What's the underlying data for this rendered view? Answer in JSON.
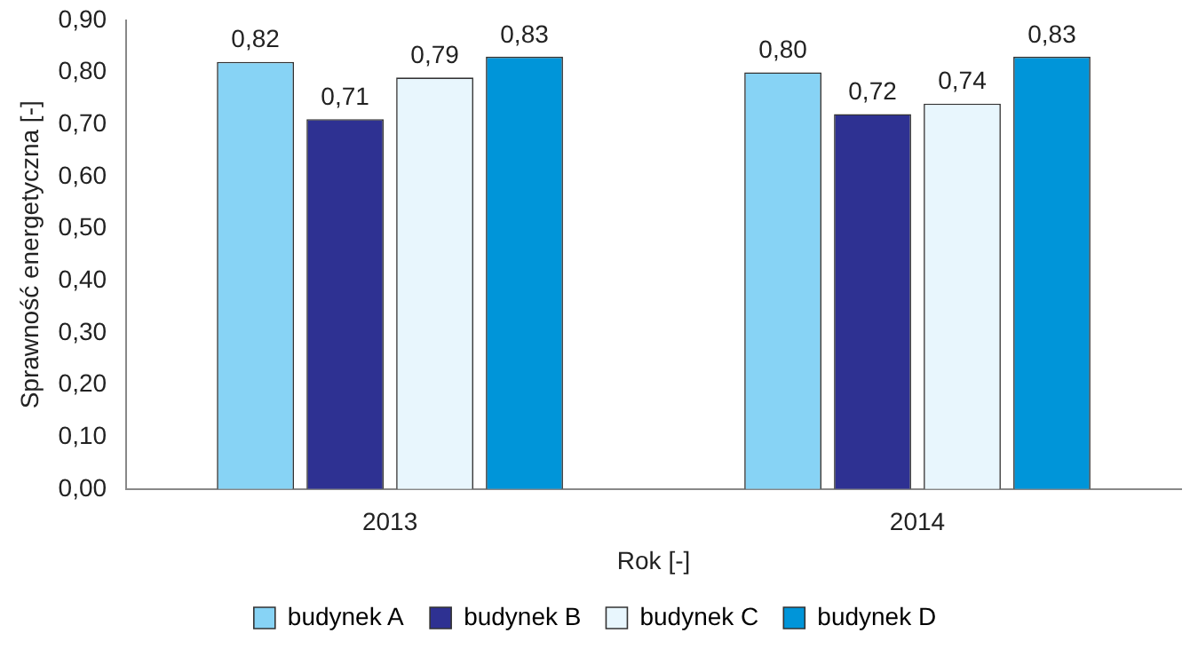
{
  "chart_data": {
    "type": "bar",
    "xlabel": "Rok [-]",
    "ylabel": "Sprawność energetyczna [-]",
    "categories": [
      "2013",
      "2014"
    ],
    "series": [
      {
        "name": "budynek A",
        "color": "#87d3f5",
        "values": [
          0.82,
          0.8
        ],
        "value_labels": [
          "0,82",
          "0,80"
        ]
      },
      {
        "name": "budynek B",
        "color": "#2e3192",
        "values": [
          0.71,
          0.72
        ],
        "value_labels": [
          "0,71",
          "0,72"
        ]
      },
      {
        "name": "budynek C",
        "color": "#e8f6fd",
        "values": [
          0.79,
          0.74
        ],
        "value_labels": [
          "0,79",
          "0,74"
        ]
      },
      {
        "name": "budynek D",
        "color": "#0095d9",
        "values": [
          0.83,
          0.83
        ],
        "value_labels": [
          "0,83",
          "0,83"
        ]
      }
    ],
    "ylim": [
      0,
      0.9
    ],
    "yticks": [
      {
        "value": 0,
        "label": "0,00"
      },
      {
        "value": 0.1,
        "label": "0,10"
      },
      {
        "value": 0.2,
        "label": "0,20"
      },
      {
        "value": 0.3,
        "label": "0,30"
      },
      {
        "value": 0.4,
        "label": "0,40"
      },
      {
        "value": 0.5,
        "label": "0,50"
      },
      {
        "value": 0.6,
        "label": "0,60"
      },
      {
        "value": 0.7,
        "label": "0,70"
      },
      {
        "value": 0.8,
        "label": "0,80"
      },
      {
        "value": 0.9,
        "label": "0,90"
      }
    ],
    "grid": false,
    "legend": "bottom"
  }
}
